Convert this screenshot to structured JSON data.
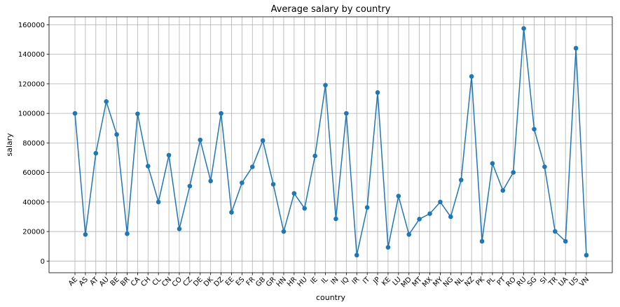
{
  "chart_data": {
    "type": "line",
    "title": "Average salary by country",
    "xlabel": "country",
    "ylabel": "salary",
    "ylim": [
      -7900,
      165400
    ],
    "yticks": [
      0,
      20000,
      40000,
      60000,
      80000,
      100000,
      120000,
      140000,
      160000
    ],
    "yticklabels": [
      "0",
      "20000",
      "40000",
      "60000",
      "80000",
      "100000",
      "120000",
      "140000",
      "160000"
    ],
    "grid": true,
    "categories": [
      "AE",
      "AS",
      "AT",
      "AU",
      "BE",
      "BR",
      "CA",
      "CH",
      "CL",
      "CN",
      "CO",
      "CZ",
      "DE",
      "DK",
      "DZ",
      "EE",
      "ES",
      "FR",
      "GB",
      "GR",
      "HN",
      "HR",
      "HU",
      "IE",
      "IL",
      "IN",
      "IQ",
      "IR",
      "IT",
      "JP",
      "KE",
      "LU",
      "MD",
      "MT",
      "MX",
      "MY",
      "NG",
      "NL",
      "NZ",
      "PK",
      "PL",
      "PT",
      "RO",
      "RU",
      "SG",
      "SI",
      "TR",
      "UA",
      "US",
      "VN"
    ],
    "series": [
      {
        "color": "#1f77b4",
        "values": [
          100000,
          18000,
          73000,
          108000,
          85700,
          18500,
          99700,
          64300,
          40000,
          71700,
          21800,
          50800,
          82000,
          54200,
          100000,
          33000,
          53000,
          63800,
          81600,
          52000,
          20000,
          45800,
          35700,
          71200,
          119100,
          28600,
          100000,
          4000,
          36300,
          114100,
          9300,
          44000,
          18000,
          28400,
          32100,
          40000,
          30000,
          54900,
          125000,
          13400,
          66100,
          47800,
          60000,
          157500,
          89300,
          63800,
          20100,
          13400,
          144100,
          4000
        ]
      }
    ]
  }
}
